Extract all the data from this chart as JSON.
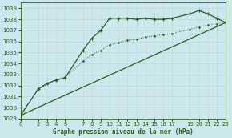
{
  "xlabel": "Graphe pression niveau de la mer (hPa)",
  "bg_color": "#cce8ec",
  "grid_color": "#b0d4d8",
  "line_color": "#2d5a1b",
  "ylim": [
    1029,
    1039.5
  ],
  "xlim": [
    0,
    23
  ],
  "yticks": [
    1029,
    1030,
    1031,
    1032,
    1033,
    1034,
    1035,
    1036,
    1037,
    1038,
    1039
  ],
  "xticks": [
    0,
    2,
    3,
    4,
    5,
    7,
    8,
    9,
    10,
    11,
    12,
    13,
    14,
    15,
    16,
    17,
    19,
    20,
    21,
    22,
    23
  ],
  "line1_x": [
    0,
    2,
    3,
    4,
    5,
    7,
    8,
    9,
    10,
    11,
    12,
    13,
    14,
    15,
    16,
    17,
    19,
    20,
    21,
    22,
    23
  ],
  "line1_y": [
    1029.3,
    1031.7,
    1032.2,
    1032.5,
    1032.7,
    1035.2,
    1036.3,
    1037.0,
    1038.1,
    1038.1,
    1038.1,
    1038.0,
    1038.1,
    1038.0,
    1038.0,
    1038.1,
    1038.5,
    1038.8,
    1038.5,
    1038.1,
    1037.7
  ],
  "line2_x": [
    0,
    23
  ],
  "line2_y": [
    1029.3,
    1037.7
  ],
  "line3_x": [
    0,
    2,
    3,
    4,
    5,
    7,
    8,
    9,
    10,
    11,
    12,
    13,
    14,
    15,
    16,
    17,
    19,
    20,
    21,
    22,
    23
  ],
  "line3_y": [
    1029.3,
    1031.7,
    1032.2,
    1032.5,
    1032.8,
    1034.2,
    1034.8,
    1035.2,
    1035.7,
    1035.9,
    1036.1,
    1036.2,
    1036.4,
    1036.5,
    1036.6,
    1036.7,
    1037.1,
    1037.3,
    1037.5,
    1037.6,
    1037.7
  ]
}
